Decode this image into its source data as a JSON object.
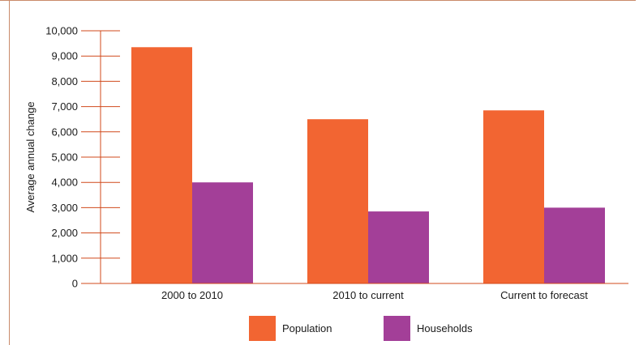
{
  "chart_data": {
    "type": "bar",
    "title": "",
    "xlabel": "",
    "ylabel": "Average annual change",
    "ylim": [
      0,
      10000
    ],
    "yticks": [
      0,
      1000,
      2000,
      3000,
      4000,
      5000,
      6000,
      7000,
      8000,
      9000,
      10000
    ],
    "ytick_labels": [
      "0",
      "1,000",
      "2,000",
      "3,000",
      "4,000",
      "5,000",
      "6,000",
      "7,000",
      "8,000",
      "9,000",
      "10,000"
    ],
    "categories": [
      "2000 to 2010",
      "2010 to current",
      "Current to forecast"
    ],
    "series": [
      {
        "name": "Population",
        "color": "#f26532",
        "values": [
          9350,
          6500,
          6850
        ]
      },
      {
        "name": "Households",
        "color": "#a33f98",
        "values": [
          4000,
          2850,
          3000
        ]
      }
    ],
    "grid": false,
    "legend_position": "bottom-center",
    "axis_color": "#d0491b",
    "frame_color": "#c98a6a"
  }
}
